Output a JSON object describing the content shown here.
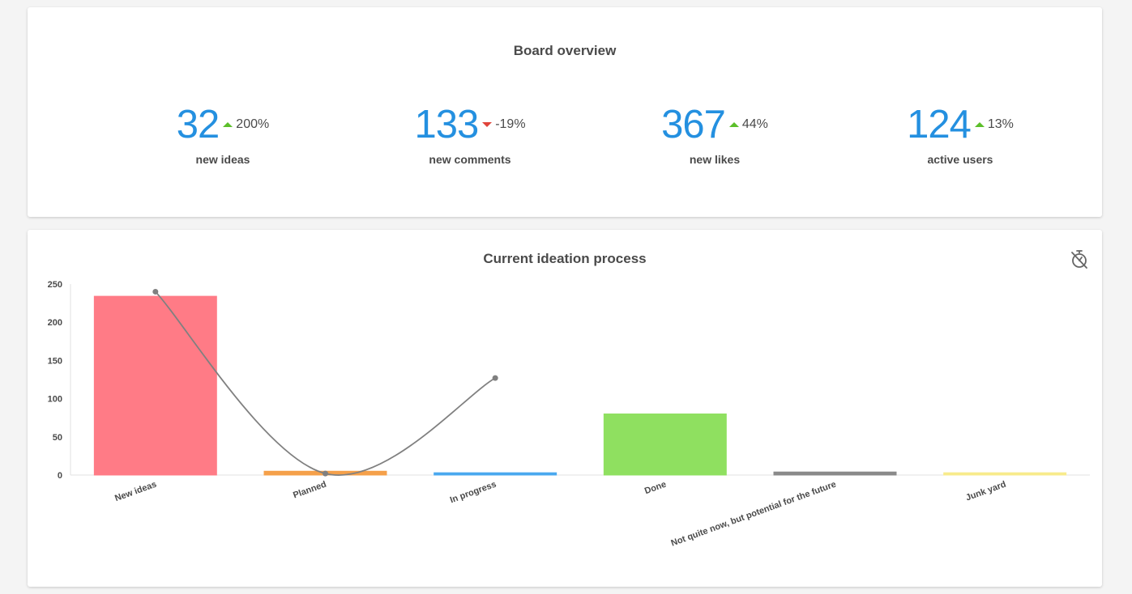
{
  "overview": {
    "title": "Board overview",
    "stats": [
      {
        "value": "32",
        "trend": "up",
        "delta": "200%",
        "label": "new ideas"
      },
      {
        "value": "133",
        "trend": "down",
        "delta": "-19%",
        "label": "new comments"
      },
      {
        "value": "367",
        "trend": "up",
        "delta": "44%",
        "label": "new likes"
      },
      {
        "value": "124",
        "trend": "up",
        "delta": "13%",
        "label": "active users"
      }
    ]
  },
  "process": {
    "title": "Current ideation process",
    "icon": "stopwatch-off-icon"
  },
  "chart_data": {
    "type": "bar",
    "title": "Current ideation process",
    "categories": [
      "New ideas",
      "Planned",
      "In progress",
      "Done",
      "Not quite now, but potential for the future",
      "Junk yard"
    ],
    "series": [
      {
        "type": "bar",
        "values": [
          234,
          5,
          3,
          80,
          4,
          3
        ],
        "colors": [
          "#ff7b86",
          "#f5a04a",
          "#4aa8ef",
          "#8fe060",
          "#8a8a8a",
          "#f8eb8c"
        ]
      },
      {
        "type": "line",
        "values": [
          240,
          2,
          127,
          null,
          null,
          null
        ],
        "color": "#808080"
      }
    ],
    "ylim": [
      0,
      250
    ],
    "yticks": [
      0,
      50,
      100,
      150,
      200,
      250
    ],
    "grid": false,
    "legend": "none"
  }
}
